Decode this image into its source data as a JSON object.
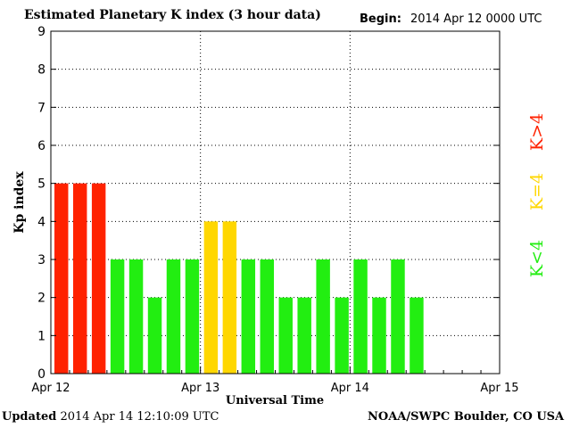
{
  "header": {
    "title": "Estimated Planetary K index (3 hour data)",
    "begin_label": "Begin:",
    "begin_value": "2014 Apr 12 0000 UTC"
  },
  "footer": {
    "updated_label": "Updated",
    "updated_value": "2014 Apr 14 12:10:09 UTC",
    "credit": "NOAA/SWPC Boulder, CO USA"
  },
  "chart_data": {
    "type": "bar",
    "title": "Estimated Planetary K index (3 hour data)",
    "xlabel": "Universal Time",
    "ylabel": "Kp index",
    "ylim": [
      0,
      9
    ],
    "yticks": [
      0,
      1,
      2,
      3,
      4,
      5,
      6,
      7,
      8,
      9
    ],
    "x_tick_labels": [
      "Apr 12",
      "Apr 13",
      "Apr 14",
      "Apr 15"
    ],
    "grid": true,
    "x_slots": 24,
    "values": [
      5,
      5,
      5,
      3,
      3,
      2,
      3,
      3,
      4,
      4,
      3,
      3,
      2,
      2,
      3,
      2,
      3,
      2,
      3,
      2
    ],
    "colors": {
      "low": "#22ee11",
      "equal": "#ffd700",
      "high": "#ff2200"
    },
    "legend": [
      {
        "label": "K>4",
        "color": "#ff2200"
      },
      {
        "label": "K=4",
        "color": "#ffd700"
      },
      {
        "label": "K<4",
        "color": "#22ee11"
      }
    ]
  }
}
